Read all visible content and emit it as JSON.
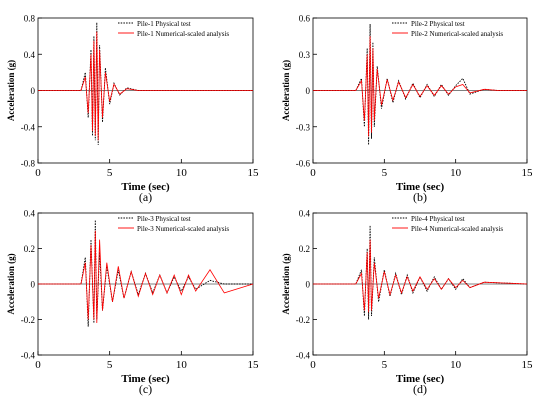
{
  "chart_data": [
    {
      "type": "line",
      "panel_label": "(a)",
      "xlabel": "Time (sec)",
      "ylabel": "Acceleration (g)",
      "xlim": [
        0,
        15
      ],
      "ylim": [
        -0.8,
        0.8
      ],
      "xticks": [
        "0",
        "5",
        "10",
        "15"
      ],
      "yticks": [
        "-0.8",
        "-0.4",
        "0",
        "0.4",
        "0.8"
      ],
      "grid": false,
      "legend_position": "top-right",
      "series": [
        {
          "name": "Pile-1 Physical test",
          "color": "#000000",
          "style": "dotted",
          "x": [
            0,
            3.0,
            3.3,
            3.5,
            3.7,
            3.8,
            3.9,
            4.0,
            4.1,
            4.2,
            4.3,
            4.5,
            4.7,
            5.0,
            5.3,
            5.7,
            6.2,
            7.0,
            8.0,
            9.0,
            10.0,
            11.0,
            12.0,
            13.0,
            14.0,
            15.0
          ],
          "y": [
            0,
            0.0,
            0.2,
            -0.3,
            0.45,
            -0.5,
            0.6,
            -0.55,
            0.75,
            -0.6,
            0.5,
            -0.35,
            0.25,
            -0.15,
            0.08,
            -0.05,
            0.03,
            0.0,
            0.0,
            0.0,
            0.0,
            0.0,
            0.0,
            0.0,
            0.0,
            0.0
          ]
        },
        {
          "name": "Pile-1 Numerical-scaled analysis",
          "color": "#ff0000",
          "style": "solid",
          "x": [
            0,
            3.0,
            3.3,
            3.5,
            3.7,
            3.8,
            3.9,
            4.0,
            4.1,
            4.2,
            4.3,
            4.5,
            4.7,
            5.0,
            5.3,
            5.7,
            6.2,
            7.0,
            8.0,
            9.0,
            10.0,
            11.0,
            12.0,
            13.0,
            14.0,
            15.0
          ],
          "y": [
            0,
            0.0,
            0.15,
            -0.25,
            0.4,
            -0.45,
            0.55,
            -0.5,
            0.65,
            -0.55,
            0.45,
            -0.3,
            0.2,
            -0.12,
            0.07,
            -0.04,
            0.02,
            0.0,
            0.0,
            0.0,
            0.0,
            0.0,
            0.0,
            0.0,
            0.0,
            0.0
          ]
        }
      ]
    },
    {
      "type": "line",
      "panel_label": "(b)",
      "xlabel": "Time (sec)",
      "ylabel": "Acceleration (g)",
      "xlim": [
        0,
        15
      ],
      "ylim": [
        -0.6,
        0.6
      ],
      "xticks": [
        "0",
        "5",
        "10",
        "15"
      ],
      "yticks": [
        "-0.6",
        "-0.3",
        "0",
        "0.3",
        "0.6"
      ],
      "grid": false,
      "legend_position": "top-right",
      "series": [
        {
          "name": "Pile-2 Physical test",
          "color": "#000000",
          "style": "dotted",
          "x": [
            0,
            3.0,
            3.4,
            3.6,
            3.8,
            3.9,
            4.0,
            4.1,
            4.2,
            4.3,
            4.5,
            4.8,
            5.2,
            5.6,
            6.0,
            6.5,
            7.0,
            7.5,
            8.0,
            8.5,
            9.0,
            9.5,
            10.0,
            10.5,
            11.0,
            12.0,
            13.0,
            15.0
          ],
          "y": [
            0,
            0.0,
            0.1,
            -0.3,
            0.35,
            -0.45,
            0.55,
            -0.4,
            0.4,
            -0.3,
            0.2,
            -0.15,
            0.1,
            -0.1,
            0.08,
            -0.07,
            0.06,
            -0.06,
            0.05,
            -0.05,
            0.05,
            -0.04,
            0.04,
            0.1,
            -0.03,
            0.01,
            0.0,
            0.0
          ]
        },
        {
          "name": "Pile-2 Numerical-scaled analysis",
          "color": "#ff0000",
          "style": "solid",
          "x": [
            0,
            3.0,
            3.4,
            3.6,
            3.8,
            3.9,
            4.0,
            4.1,
            4.2,
            4.3,
            4.5,
            4.8,
            5.2,
            5.6,
            6.0,
            6.5,
            7.0,
            7.5,
            8.0,
            8.5,
            9.0,
            9.5,
            10.0,
            10.5,
            11.0,
            12.0,
            13.0,
            15.0
          ],
          "y": [
            0,
            0.0,
            0.08,
            -0.25,
            0.3,
            -0.38,
            0.45,
            -0.35,
            0.35,
            -0.25,
            0.18,
            -0.12,
            0.09,
            -0.08,
            0.07,
            -0.06,
            0.05,
            -0.05,
            0.04,
            -0.04,
            0.04,
            -0.03,
            0.03,
            0.05,
            -0.02,
            0.01,
            0.0,
            0.0
          ]
        }
      ]
    },
    {
      "type": "line",
      "panel_label": "(c)",
      "xlabel": "Time (sec)",
      "ylabel": "Acceleration (g)",
      "xlim": [
        0,
        15
      ],
      "ylim": [
        -0.4,
        0.4
      ],
      "xticks": [
        "0",
        "5",
        "10",
        "15"
      ],
      "yticks": [
        "-0.4",
        "-0.2",
        "0",
        "0.2",
        "0.4"
      ],
      "grid": false,
      "legend_position": "top-right",
      "series": [
        {
          "name": "Pile-3 Physical test",
          "color": "#000000",
          "style": "dotted",
          "x": [
            0,
            3.0,
            3.3,
            3.5,
            3.7,
            3.9,
            4.0,
            4.1,
            4.3,
            4.5,
            4.8,
            5.2,
            5.6,
            6.0,
            6.5,
            7.0,
            7.5,
            8.0,
            8.5,
            9.0,
            9.5,
            10.0,
            10.5,
            11.0,
            12.0,
            13.0,
            15.0
          ],
          "y": [
            0,
            0.0,
            0.15,
            -0.24,
            0.25,
            -0.22,
            0.36,
            -0.2,
            0.18,
            -0.15,
            0.1,
            -0.1,
            0.08,
            -0.08,
            0.07,
            -0.06,
            0.06,
            -0.05,
            0.05,
            -0.05,
            0.04,
            -0.04,
            0.04,
            -0.03,
            0.02,
            0.0,
            0.0
          ]
        },
        {
          "name": "Pile-3 Numerical-scaled analysis",
          "color": "#ff0000",
          "style": "solid",
          "x": [
            0,
            3.0,
            3.3,
            3.5,
            3.7,
            3.9,
            4.0,
            4.1,
            4.3,
            4.5,
            4.8,
            5.2,
            5.6,
            6.0,
            6.5,
            7.0,
            7.5,
            8.0,
            8.5,
            9.0,
            9.5,
            10.0,
            10.5,
            11.0,
            12.0,
            13.0,
            15.0
          ],
          "y": [
            0,
            0.0,
            0.12,
            -0.2,
            0.22,
            -0.2,
            0.3,
            -0.22,
            0.25,
            -0.15,
            0.12,
            -0.1,
            0.1,
            -0.08,
            0.07,
            -0.07,
            0.06,
            -0.06,
            0.05,
            -0.05,
            0.05,
            -0.06,
            0.05,
            -0.04,
            0.08,
            -0.05,
            0.0
          ]
        }
      ]
    },
    {
      "type": "line",
      "panel_label": "(d)",
      "xlabel": "Time (sec)",
      "ylabel": "Acceleration (g)",
      "xlim": [
        0,
        15
      ],
      "ylim": [
        -0.4,
        0.4
      ],
      "xticks": [
        "0",
        "5",
        "10",
        "15"
      ],
      "yticks": [
        "-0.4",
        "-0.2",
        "0",
        "0.2",
        "0.4"
      ],
      "grid": false,
      "legend_position": "top-right",
      "series": [
        {
          "name": "Pile-4 Physical test",
          "color": "#000000",
          "style": "dotted",
          "x": [
            0,
            3.0,
            3.4,
            3.6,
            3.8,
            3.9,
            4.0,
            4.1,
            4.3,
            4.6,
            5.0,
            5.4,
            5.8,
            6.2,
            6.6,
            7.0,
            7.5,
            8.0,
            8.5,
            9.0,
            9.5,
            10.0,
            10.5,
            11.0,
            12.0,
            15.0
          ],
          "y": [
            0,
            0.0,
            0.08,
            -0.18,
            0.2,
            -0.2,
            0.33,
            -0.18,
            0.15,
            -0.1,
            0.08,
            -0.07,
            0.06,
            -0.06,
            0.05,
            -0.05,
            0.04,
            -0.04,
            0.04,
            -0.03,
            0.03,
            -0.03,
            0.03,
            -0.02,
            0.01,
            0.0
          ]
        },
        {
          "name": "Pile-4 Numerical-scaled analysis",
          "color": "#ff0000",
          "style": "solid",
          "x": [
            0,
            3.0,
            3.4,
            3.6,
            3.8,
            3.9,
            4.0,
            4.1,
            4.3,
            4.6,
            5.0,
            5.4,
            5.8,
            6.2,
            6.6,
            7.0,
            7.5,
            8.0,
            8.5,
            9.0,
            9.5,
            10.0,
            10.5,
            11.0,
            12.0,
            15.0
          ],
          "y": [
            0,
            0.0,
            0.06,
            -0.15,
            0.18,
            -0.16,
            0.25,
            -0.15,
            0.12,
            -0.08,
            0.07,
            -0.06,
            0.05,
            -0.05,
            0.04,
            -0.04,
            0.04,
            -0.03,
            0.03,
            -0.03,
            0.03,
            -0.02,
            0.02,
            -0.02,
            0.01,
            0.0
          ]
        }
      ]
    }
  ]
}
